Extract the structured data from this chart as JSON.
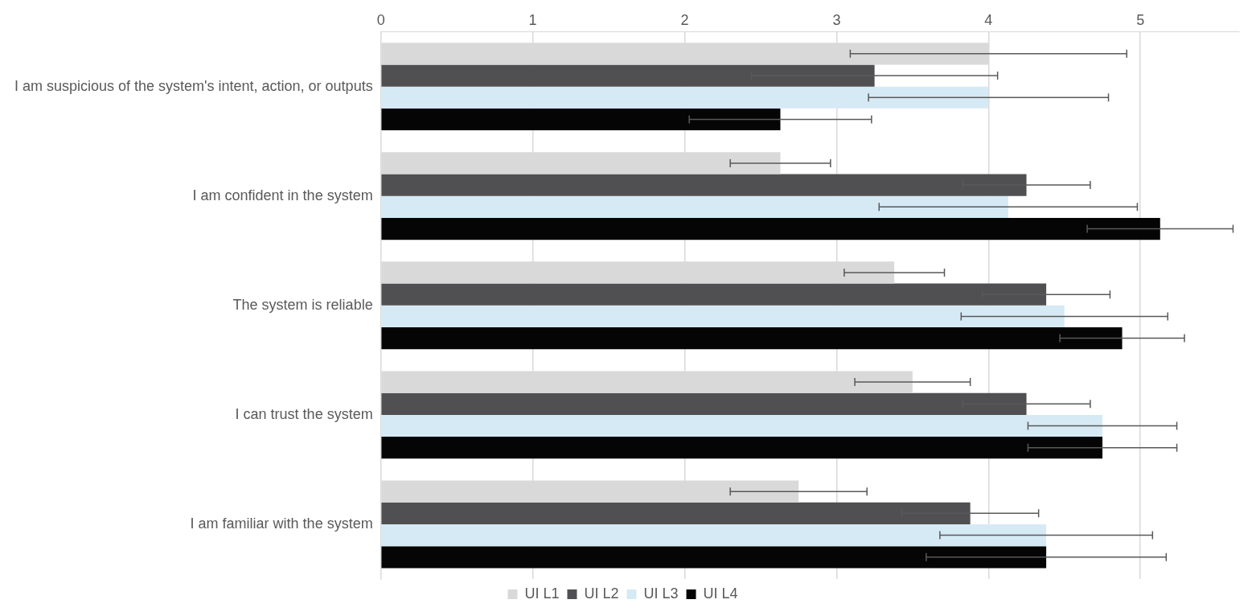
{
  "chart_data": {
    "type": "bar",
    "orientation": "horizontal",
    "categories": [
      "I am suspicious of the system's intent, action, or outputs",
      "I am confident in the system",
      "The system is reliable",
      "I can trust the system",
      "I am familiar with the system"
    ],
    "series": [
      {
        "name": "UI L1",
        "color": "#d9d9d9",
        "values": [
          4.0,
          2.63,
          3.38,
          3.5,
          2.75
        ],
        "errors": [
          0.91,
          0.33,
          0.33,
          0.38,
          0.45
        ]
      },
      {
        "name": "UI L2",
        "color": "#505052",
        "values": [
          3.25,
          4.25,
          4.38,
          4.25,
          3.88
        ],
        "errors": [
          0.81,
          0.42,
          0.42,
          0.42,
          0.45
        ]
      },
      {
        "name": "UI L3",
        "color": "#d6eaf5",
        "values": [
          4.0,
          4.13,
          4.5,
          4.75,
          4.38
        ],
        "errors": [
          0.79,
          0.85,
          0.68,
          0.49,
          0.7
        ]
      },
      {
        "name": "UI L4",
        "color": "#050505",
        "values": [
          2.63,
          5.13,
          4.88,
          4.75,
          4.38
        ],
        "errors": [
          0.6,
          0.48,
          0.41,
          0.49,
          0.79
        ]
      }
    ],
    "xlim": [
      0,
      5.65
    ],
    "xticks": [
      0,
      1,
      2,
      3,
      4,
      5
    ],
    "grid": "x",
    "legend": "bottom"
  }
}
